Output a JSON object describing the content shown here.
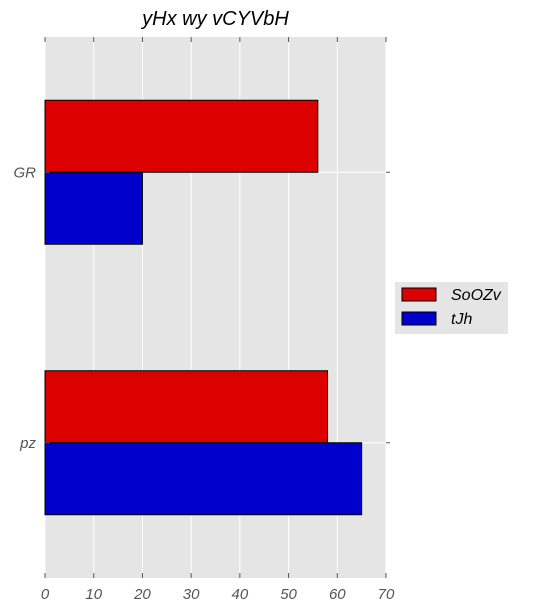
{
  "chart_data": {
    "type": "bar",
    "orientation": "horizontal",
    "title": "yHx wy vCYVbH",
    "xlabel": "",
    "ylabel": "",
    "categories": [
      "GR",
      "pz"
    ],
    "series": [
      {
        "name": "SoOZv",
        "color": "#dd0000",
        "values": [
          56,
          58
        ]
      },
      {
        "name": "tJh",
        "color": "#0000cc",
        "values": [
          20,
          65
        ]
      }
    ],
    "xlim": [
      0,
      70
    ],
    "xticks": [
      0,
      10,
      20,
      30,
      40,
      50,
      60,
      70
    ],
    "grid": true,
    "legend_position": "right"
  },
  "colors": {
    "plot_background": "#e5e5e5",
    "grid": "#ffffff",
    "bar_edge": "#000000"
  }
}
